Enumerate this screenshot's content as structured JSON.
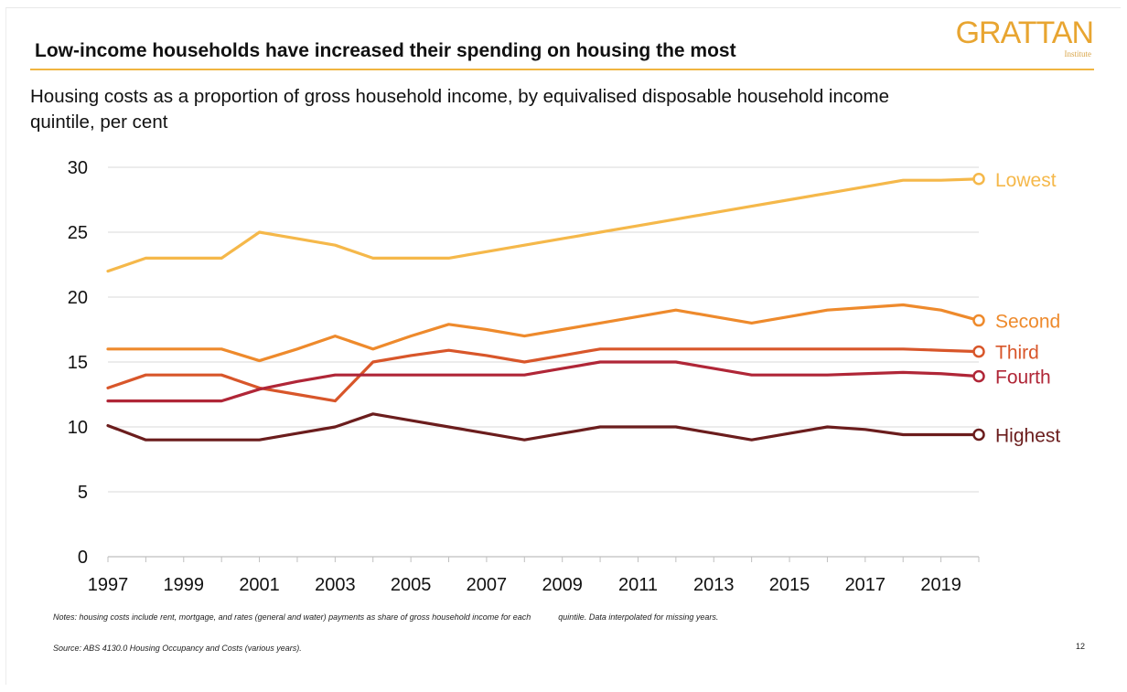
{
  "logo": {
    "main": "GRATTAN",
    "sub": "Institute"
  },
  "title": "Low-income households have increased their spending on housing the most",
  "subtitle": "Housing costs as a proportion of gross household income, by equivalised disposable household income quintile, per cent",
  "notes": {
    "part1": "Notes: housing costs include rent, mortgage, and rates (general and water) payments as share of gross household income for each",
    "part2": "quintile. Data interpolated for missing years."
  },
  "source": "Source: ABS 4130.0 Housing Occupancy and Costs (various years).",
  "page_number": "12",
  "chart_data": {
    "type": "line",
    "title": "Low-income households have increased their spending on housing the most",
    "x": [
      1997,
      1998,
      1999,
      2000,
      2001,
      2002,
      2003,
      2004,
      2005,
      2006,
      2007,
      2008,
      2009,
      2010,
      2011,
      2012,
      2013,
      2014,
      2015,
      2016,
      2017,
      2018,
      2019,
      2020
    ],
    "xticks": [
      "1997",
      "1999",
      "2001",
      "2003",
      "2005",
      "2007",
      "2009",
      "2011",
      "2013",
      "2015",
      "2017",
      "2019"
    ],
    "yticks": [
      "0",
      "5",
      "10",
      "15",
      "20",
      "25",
      "30"
    ],
    "xlim": [
      1997,
      2020
    ],
    "ylim": [
      0,
      30
    ],
    "grid": "horizontal",
    "legend": "end-of-line labels",
    "series": [
      {
        "name": "Lowest",
        "color": "#f5b84a",
        "values": [
          22,
          23,
          23,
          23,
          25,
          24.5,
          24,
          23,
          23,
          23,
          23.5,
          24,
          24.5,
          25,
          25.5,
          26,
          26.5,
          27,
          27.5,
          28,
          28.5,
          29,
          29,
          29.1
        ]
      },
      {
        "name": "Second",
        "color": "#ee8a2c",
        "values": [
          16,
          16,
          16,
          16,
          15.1,
          16,
          17,
          16,
          17,
          17.9,
          17.5,
          17,
          17.5,
          18,
          18.5,
          19,
          18.5,
          18,
          18.5,
          19,
          19.2,
          19.4,
          19,
          18.2
        ]
      },
      {
        "name": "Third",
        "color": "#d8562a",
        "values": [
          13,
          14,
          14,
          14,
          13,
          12.5,
          12,
          15,
          15.5,
          15.9,
          15.5,
          15,
          15.5,
          16,
          16,
          16,
          16,
          16,
          16,
          16,
          16,
          16,
          15.9,
          15.8
        ]
      },
      {
        "name": "Fourth",
        "color": "#b02637",
        "values": [
          12,
          12,
          12,
          12,
          12.9,
          13.5,
          14,
          14,
          14,
          14,
          14,
          14,
          14.5,
          15,
          15,
          15,
          14.5,
          14,
          14,
          14,
          14.1,
          14.2,
          14.1,
          13.9
        ]
      },
      {
        "name": "Highest",
        "color": "#6b1d1d",
        "values": [
          10.1,
          9,
          9,
          9,
          9,
          9.5,
          10,
          11,
          10.5,
          10,
          9.5,
          9,
          9.5,
          10,
          10,
          10,
          9.5,
          9,
          9.5,
          10,
          9.8,
          9.4,
          9.4,
          9.4
        ]
      }
    ]
  }
}
